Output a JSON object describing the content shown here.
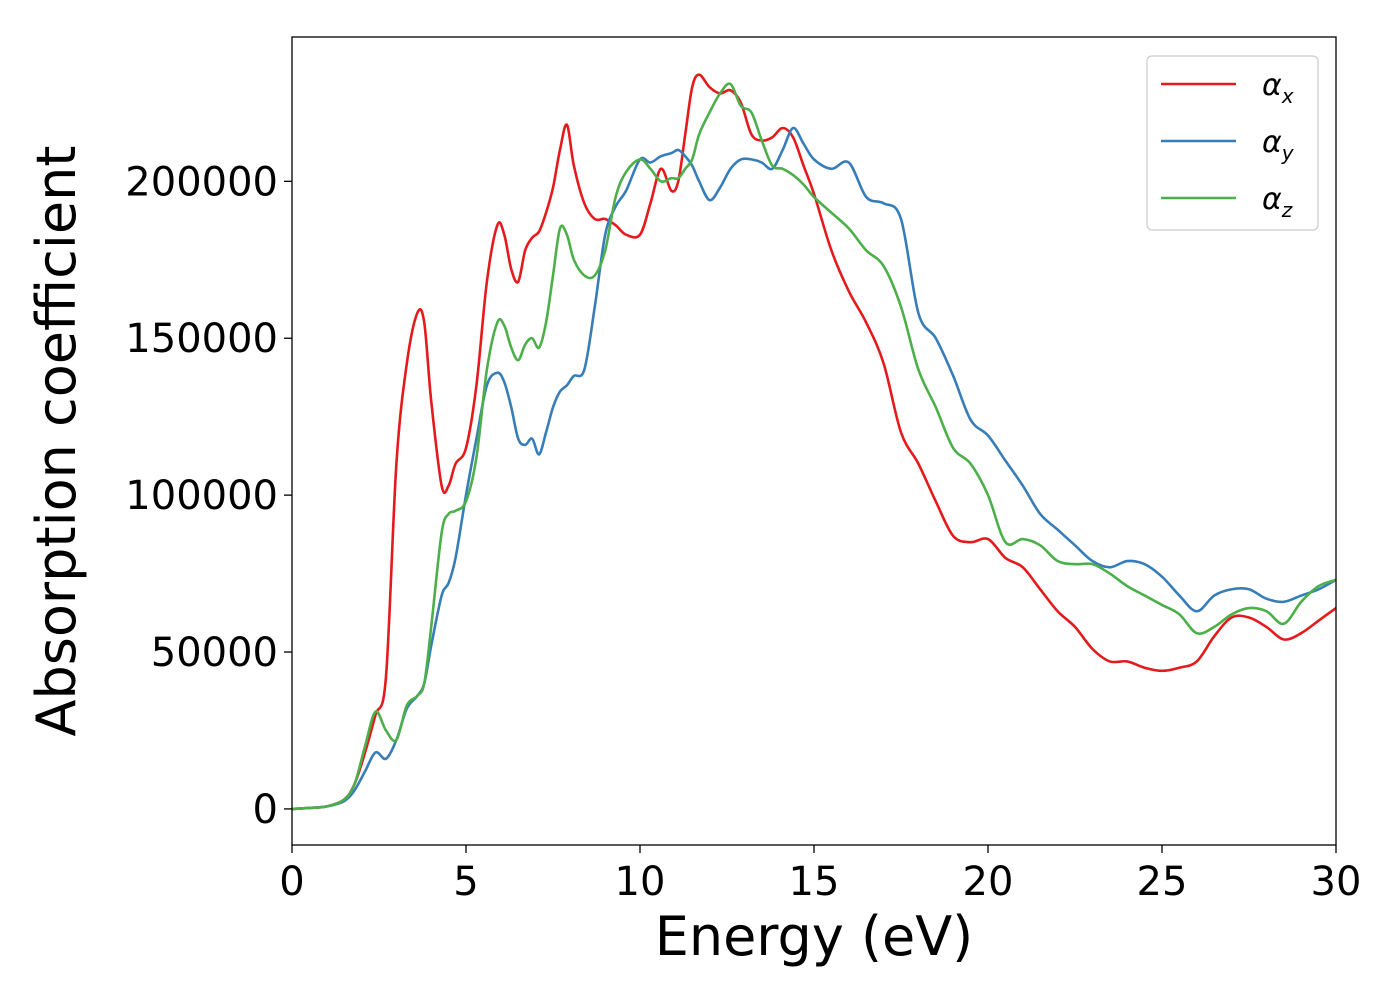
{
  "chart_data": {
    "type": "line",
    "xlabel": "Energy (eV)",
    "ylabel": "Absorption coefficient",
    "xlim": [
      0,
      30
    ],
    "ylim": [
      -11500,
      246000
    ],
    "xticks": [
      0,
      5,
      10,
      15,
      20,
      25,
      30
    ],
    "xtick_labels": [
      "0",
      "5",
      "10",
      "15",
      "20",
      "25",
      "30"
    ],
    "yticks": [
      0,
      50000,
      100000,
      150000,
      200000
    ],
    "ytick_labels": [
      "0",
      "50000",
      "100000",
      "150000",
      "200000"
    ],
    "grid": false,
    "legend_position": "top-right",
    "series": [
      {
        "name": "α",
        "name_sub": "x",
        "color": "#e41a1c",
        "x": [
          0,
          0.5,
          1,
          1.5,
          1.8,
          2.1,
          2.4,
          2.7,
          3.0,
          3.3,
          3.6,
          3.8,
          4.0,
          4.3,
          4.5,
          4.7,
          5.0,
          5.3,
          5.6,
          5.9,
          6.1,
          6.3,
          6.5,
          6.7,
          6.9,
          7.1,
          7.3,
          7.5,
          7.7,
          7.9,
          8.1,
          8.4,
          8.7,
          9.0,
          9.3,
          9.6,
          10.0,
          10.3,
          10.6,
          10.9,
          11.1,
          11.3,
          11.5,
          11.7,
          12.0,
          12.3,
          12.6,
          12.9,
          13.2,
          13.5,
          13.8,
          14.1,
          14.4,
          14.7,
          15.0,
          15.5,
          16.0,
          16.5,
          17.0,
          17.5,
          18.0,
          18.5,
          19.0,
          19.5,
          20.0,
          20.5,
          21.0,
          21.5,
          22.0,
          22.5,
          23.0,
          23.5,
          24.0,
          24.5,
          25.0,
          25.5,
          26.0,
          26.5,
          27.0,
          27.5,
          28.0,
          28.5,
          29.0,
          29.5,
          30.0
        ],
        "y": [
          0,
          300,
          800,
          3000,
          8000,
          18000,
          30000,
          42000,
          110000,
          142000,
          158000,
          155000,
          130000,
          103000,
          103000,
          110000,
          115000,
          135000,
          168000,
          186000,
          183000,
          172000,
          168000,
          178000,
          182000,
          184000,
          190000,
          198000,
          210000,
          218000,
          205000,
          193000,
          188000,
          188000,
          186000,
          183000,
          183000,
          193000,
          204000,
          197000,
          200000,
          215000,
          230000,
          234000,
          230000,
          228000,
          229000,
          225000,
          215000,
          213000,
          214000,
          217000,
          214000,
          205000,
          196000,
          178000,
          165000,
          155000,
          142000,
          120000,
          110000,
          98000,
          87000,
          85000,
          86000,
          80000,
          77000,
          70000,
          63000,
          58000,
          51000,
          47000,
          47000,
          45000,
          44000,
          45000,
          47000,
          55000,
          61000,
          61000,
          58000,
          54000,
          56000,
          60000,
          64000
        ]
      },
      {
        "name": "α",
        "name_sub": "y",
        "color": "#377eb8",
        "x": [
          0,
          0.5,
          1,
          1.5,
          1.8,
          2.1,
          2.4,
          2.7,
          3.0,
          3.3,
          3.6,
          3.8,
          4.0,
          4.3,
          4.5,
          4.7,
          5.0,
          5.3,
          5.6,
          5.9,
          6.1,
          6.3,
          6.5,
          6.7,
          6.9,
          7.1,
          7.3,
          7.5,
          7.7,
          7.9,
          8.1,
          8.4,
          8.7,
          9.0,
          9.3,
          9.6,
          10.0,
          10.3,
          10.6,
          10.9,
          11.1,
          11.3,
          11.5,
          11.7,
          12.0,
          12.3,
          12.6,
          12.9,
          13.2,
          13.5,
          13.8,
          14.1,
          14.4,
          14.7,
          15.0,
          15.5,
          16.0,
          16.5,
          17.0,
          17.5,
          18.0,
          18.5,
          19.0,
          19.5,
          20.0,
          20.5,
          21.0,
          21.5,
          22.0,
          22.5,
          23.0,
          23.5,
          24.0,
          24.5,
          25.0,
          25.5,
          26.0,
          26.5,
          27.0,
          27.5,
          28.0,
          28.5,
          29.0,
          29.5,
          30.0
        ],
        "y": [
          0,
          300,
          800,
          2500,
          6000,
          12000,
          18000,
          16000,
          22000,
          32000,
          36000,
          40000,
          52000,
          68000,
          72000,
          80000,
          100000,
          118000,
          135000,
          139000,
          136000,
          128000,
          118000,
          116000,
          118000,
          113000,
          120000,
          128000,
          133000,
          135000,
          138000,
          140000,
          160000,
          183000,
          192000,
          197000,
          207000,
          206000,
          208000,
          209000,
          210000,
          208000,
          205000,
          200000,
          194000,
          198000,
          204000,
          207000,
          207000,
          206000,
          204000,
          210000,
          217000,
          212000,
          207000,
          204000,
          206000,
          195000,
          193000,
          188000,
          158000,
          150000,
          138000,
          124000,
          119000,
          111000,
          103000,
          94000,
          89000,
          84000,
          79000,
          77000,
          79000,
          78000,
          74000,
          68000,
          63000,
          68000,
          70000,
          70000,
          67000,
          66000,
          68000,
          70000,
          73000
        ]
      },
      {
        "name": "α",
        "name_sub": "z",
        "color": "#4daf4a",
        "x": [
          0,
          0.5,
          1,
          1.5,
          1.8,
          2.1,
          2.4,
          2.7,
          3.0,
          3.3,
          3.6,
          3.8,
          4.0,
          4.3,
          4.5,
          4.7,
          5.0,
          5.3,
          5.6,
          5.9,
          6.1,
          6.3,
          6.5,
          6.7,
          6.9,
          7.1,
          7.3,
          7.5,
          7.7,
          7.9,
          8.1,
          8.4,
          8.7,
          9.0,
          9.3,
          9.6,
          10.0,
          10.3,
          10.6,
          10.9,
          11.1,
          11.3,
          11.5,
          11.7,
          12.0,
          12.3,
          12.6,
          12.9,
          13.2,
          13.5,
          13.8,
          14.1,
          14.4,
          14.7,
          15.0,
          15.5,
          16.0,
          16.5,
          17.0,
          17.5,
          18.0,
          18.5,
          19.0,
          19.5,
          20.0,
          20.5,
          21.0,
          21.5,
          22.0,
          22.5,
          23.0,
          23.5,
          24.0,
          24.5,
          25.0,
          25.5,
          26.0,
          26.5,
          27.0,
          27.5,
          28.0,
          28.5,
          29.0,
          29.5,
          30.0
        ],
        "y": [
          0,
          300,
          800,
          3000,
          8000,
          20000,
          31000,
          25000,
          22000,
          33000,
          36000,
          40000,
          58000,
          88000,
          94000,
          95000,
          98000,
          112000,
          140000,
          155000,
          154000,
          147000,
          143000,
          148000,
          150000,
          147000,
          155000,
          170000,
          185000,
          183000,
          175000,
          170000,
          170000,
          178000,
          195000,
          203000,
          207000,
          204000,
          200000,
          201000,
          201000,
          204000,
          207000,
          215000,
          222000,
          228000,
          231000,
          224000,
          222000,
          213000,
          205000,
          204000,
          202000,
          199000,
          195000,
          190000,
          185000,
          178000,
          173000,
          160000,
          140000,
          128000,
          115000,
          110000,
          100000,
          85000,
          86000,
          84000,
          79000,
          78000,
          78000,
          75000,
          71000,
          68000,
          65000,
          62000,
          56000,
          58000,
          62000,
          64000,
          63000,
          59000,
          66000,
          71000,
          73000
        ]
      }
    ]
  }
}
